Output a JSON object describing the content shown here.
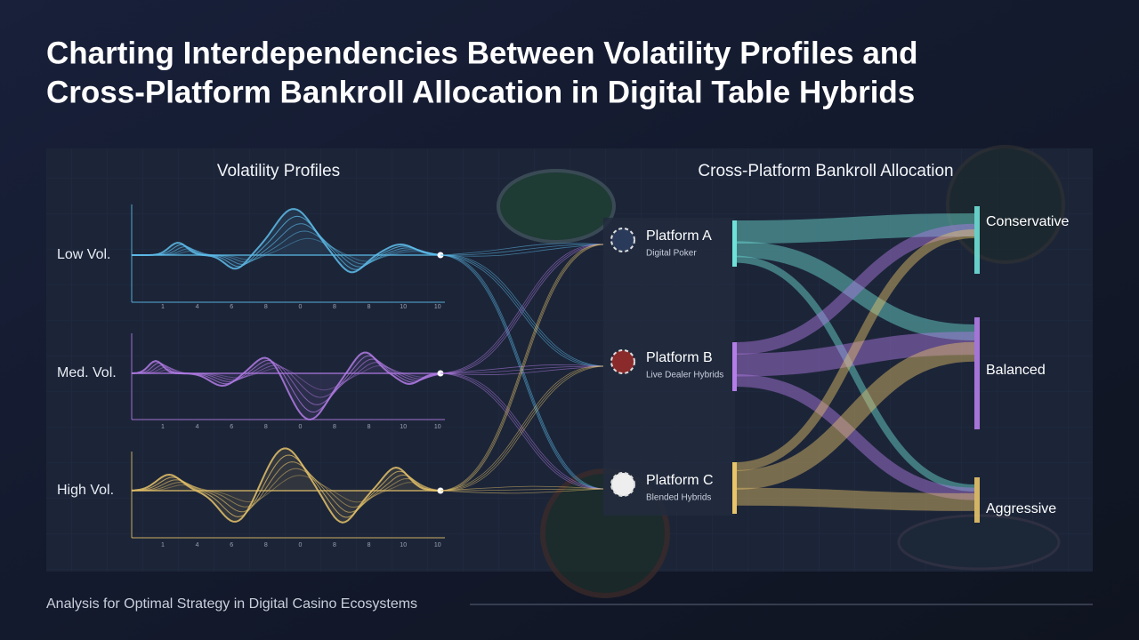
{
  "header": {
    "title_lines": [
      "Charting Interdependencies Between Volatility Profiles and",
      "Cross-Platform Bankroll Allocation in Digital Table Hybrids"
    ]
  },
  "left_panel": {
    "title": "Volatility Profiles",
    "profiles": [
      {
        "label": "Low Vol.",
        "ticks": [
          "1",
          "4",
          "6",
          "8",
          "0",
          "8",
          "8",
          "10",
          "10"
        ]
      },
      {
        "label": "Med. Vol.",
        "ticks": [
          "1",
          "4",
          "6",
          "8",
          "0",
          "8",
          "8",
          "10",
          "10"
        ]
      },
      {
        "label": "High Vol.",
        "ticks": [
          "1",
          "4",
          "6",
          "8",
          "0",
          "8",
          "8",
          "10",
          "10"
        ]
      }
    ]
  },
  "right_panel": {
    "title": "Cross-Platform Bankroll Allocation",
    "platforms": [
      {
        "name": "Platform A",
        "subtitle": "Digital Poker"
      },
      {
        "name": "Platform B",
        "subtitle": "Live Dealer Hybrids"
      },
      {
        "name": "Platform C",
        "subtitle": "Blended Hybrids"
      }
    ],
    "strategies": [
      "Conservative",
      "Balanced",
      "Aggressive"
    ]
  },
  "footer": {
    "caption": "Analysis for Optimal Strategy in Digital Casino Ecosystems"
  }
}
